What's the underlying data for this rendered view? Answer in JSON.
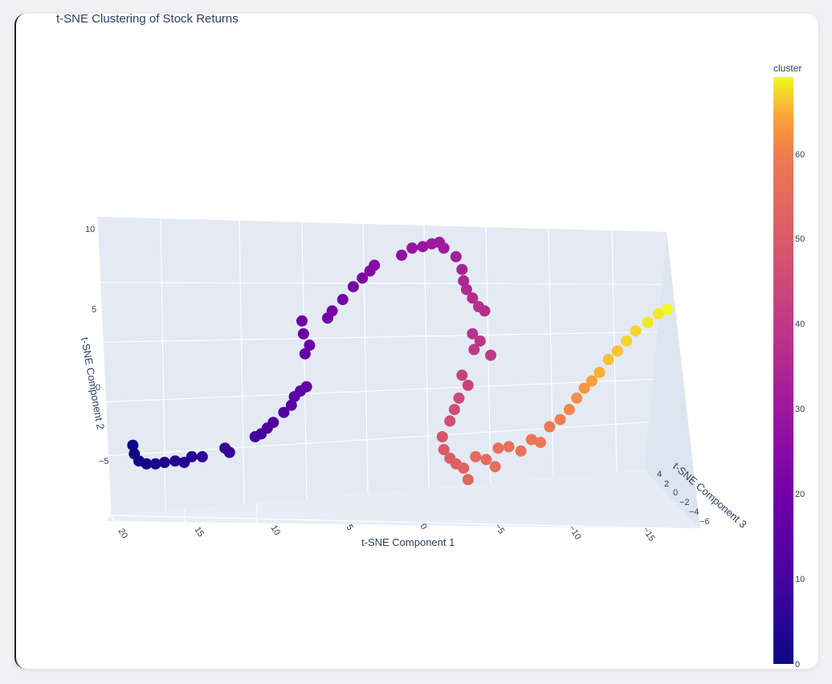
{
  "chart_data": {
    "type": "scatter",
    "title": "t-SNE Clustering of Stock Returns",
    "xlabel": "t-SNE Component 1",
    "ylabel": "t-SNE Component 2",
    "zlabel": "t-SNE Component 3",
    "x_ticks": [
      "20",
      "15",
      "10",
      "5",
      "0",
      "−5",
      "−10",
      "−15"
    ],
    "y_ticks": [
      "10",
      "5",
      "0",
      "−5"
    ],
    "z_ticks": [
      "4",
      "2",
      "0",
      "−2",
      "−4",
      "−6"
    ],
    "colorbar": {
      "title": "cluster",
      "ticks": [
        "60",
        "50",
        "40",
        "30",
        "20",
        "10",
        "0"
      ],
      "range": [
        0,
        69
      ],
      "colorscale": "plasma"
    },
    "points": [
      {
        "x": 18.7,
        "y": -3.8,
        "cluster": 0
      },
      {
        "x": 18.6,
        "y": -4.4,
        "cluster": 0
      },
      {
        "x": 18.3,
        "y": -4.9,
        "cluster": 1
      },
      {
        "x": 17.8,
        "y": -5.1,
        "cluster": 1
      },
      {
        "x": 17.2,
        "y": -5.1,
        "cluster": 2
      },
      {
        "x": 16.6,
        "y": -5.0,
        "cluster": 3
      },
      {
        "x": 15.9,
        "y": -4.9,
        "cluster": 4
      },
      {
        "x": 15.3,
        "y": -5.0,
        "cluster": 4
      },
      {
        "x": 14.8,
        "y": -4.6,
        "cluster": 5
      },
      {
        "x": 14.1,
        "y": -4.6,
        "cluster": 6
      },
      {
        "x": 12.6,
        "y": -4.0,
        "cluster": 7
      },
      {
        "x": 12.3,
        "y": -4.3,
        "cluster": 7
      },
      {
        "x": 10.6,
        "y": -3.2,
        "cluster": 9
      },
      {
        "x": 10.2,
        "y": -3.0,
        "cluster": 10
      },
      {
        "x": 9.8,
        "y": -2.6,
        "cluster": 11
      },
      {
        "x": 9.4,
        "y": -2.2,
        "cluster": 12
      },
      {
        "x": 8.7,
        "y": -1.5,
        "cluster": 13
      },
      {
        "x": 8.2,
        "y": -1.0,
        "cluster": 14
      },
      {
        "x": 8.0,
        "y": -0.4,
        "cluster": 15
      },
      {
        "x": 7.6,
        "y": 0.0,
        "cluster": 15
      },
      {
        "x": 7.2,
        "y": 0.3,
        "cluster": 16
      },
      {
        "x": 7.3,
        "y": 2.6,
        "cluster": 17
      },
      {
        "x": 7.0,
        "y": 3.2,
        "cluster": 18
      },
      {
        "x": 7.4,
        "y": 4.0,
        "cluster": 18
      },
      {
        "x": 7.5,
        "y": 4.9,
        "cluster": 19
      },
      {
        "x": 5.8,
        "y": 5.1,
        "cluster": 20
      },
      {
        "x": 5.5,
        "y": 5.6,
        "cluster": 20
      },
      {
        "x": 4.8,
        "y": 6.4,
        "cluster": 21
      },
      {
        "x": 4.1,
        "y": 7.3,
        "cluster": 22
      },
      {
        "x": 3.5,
        "y": 7.9,
        "cluster": 23
      },
      {
        "x": 3.0,
        "y": 8.4,
        "cluster": 24
      },
      {
        "x": 2.7,
        "y": 8.8,
        "cluster": 25
      },
      {
        "x": 0.9,
        "y": 9.5,
        "cluster": 27
      },
      {
        "x": 0.2,
        "y": 10.0,
        "cluster": 28
      },
      {
        "x": -0.5,
        "y": 10.1,
        "cluster": 29
      },
      {
        "x": -1.1,
        "y": 10.3,
        "cluster": 30
      },
      {
        "x": -1.6,
        "y": 10.4,
        "cluster": 31
      },
      {
        "x": -1.9,
        "y": 10.0,
        "cluster": 31
      },
      {
        "x": -2.7,
        "y": 9.4,
        "cluster": 32
      },
      {
        "x": -3.1,
        "y": 8.5,
        "cluster": 33
      },
      {
        "x": -3.2,
        "y": 7.7,
        "cluster": 34
      },
      {
        "x": -3.4,
        "y": 7.1,
        "cluster": 35
      },
      {
        "x": -3.8,
        "y": 6.5,
        "cluster": 36
      },
      {
        "x": -4.2,
        "y": 5.9,
        "cluster": 37
      },
      {
        "x": -4.6,
        "y": 5.6,
        "cluster": 37
      },
      {
        "x": -3.8,
        "y": 4.0,
        "cluster": 38
      },
      {
        "x": -4.3,
        "y": 3.5,
        "cluster": 39
      },
      {
        "x": -5.0,
        "y": 2.5,
        "cluster": 40
      },
      {
        "x": -3.9,
        "y": 2.9,
        "cluster": 40
      },
      {
        "x": -3.1,
        "y": 1.1,
        "cluster": 42
      },
      {
        "x": -3.5,
        "y": 0.4,
        "cluster": 43
      },
      {
        "x": -2.9,
        "y": -0.5,
        "cluster": 45
      },
      {
        "x": -2.6,
        "y": -1.3,
        "cluster": 46
      },
      {
        "x": -2.3,
        "y": -2.1,
        "cluster": 47
      },
      {
        "x": -1.8,
        "y": -3.2,
        "cluster": 48
      },
      {
        "x": -1.9,
        "y": -4.1,
        "cluster": 50
      },
      {
        "x": -2.3,
        "y": -4.7,
        "cluster": 51
      },
      {
        "x": -2.7,
        "y": -5.1,
        "cluster": 52
      },
      {
        "x": -3.2,
        "y": -5.4,
        "cluster": 53
      },
      {
        "x": -3.5,
        "y": -6.2,
        "cluster": 54
      },
      {
        "x": -4.0,
        "y": -4.6,
        "cluster": 55
      },
      {
        "x": -4.7,
        "y": -4.8,
        "cluster": 55
      },
      {
        "x": -5.3,
        "y": -5.3,
        "cluster": 56
      },
      {
        "x": -5.5,
        "y": -4.0,
        "cluster": 56
      },
      {
        "x": -6.2,
        "y": -3.9,
        "cluster": 57
      },
      {
        "x": -7.0,
        "y": -4.2,
        "cluster": 57
      },
      {
        "x": -7.7,
        "y": -3.4,
        "cluster": 58
      },
      {
        "x": -8.3,
        "y": -3.6,
        "cluster": 59
      },
      {
        "x": -8.9,
        "y": -2.5,
        "cluster": 59
      },
      {
        "x": -9.6,
        "y": -2.0,
        "cluster": 60
      },
      {
        "x": -10.2,
        "y": -1.3,
        "cluster": 61
      },
      {
        "x": -10.7,
        "y": -0.5,
        "cluster": 62
      },
      {
        "x": -11.2,
        "y": 0.2,
        "cluster": 63
      },
      {
        "x": -11.7,
        "y": 0.7,
        "cluster": 64
      },
      {
        "x": -12.2,
        "y": 1.3,
        "cluster": 65
      },
      {
        "x": -12.8,
        "y": 2.2,
        "cluster": 66
      },
      {
        "x": -13.4,
        "y": 2.8,
        "cluster": 66
      },
      {
        "x": -14.0,
        "y": 3.5,
        "cluster": 67
      },
      {
        "x": -14.6,
        "y": 4.2,
        "cluster": 67
      },
      {
        "x": -15.4,
        "y": 4.8,
        "cluster": 68
      },
      {
        "x": -16.1,
        "y": 5.4,
        "cluster": 68
      },
      {
        "x": -16.7,
        "y": 5.7,
        "cluster": 69
      }
    ]
  }
}
